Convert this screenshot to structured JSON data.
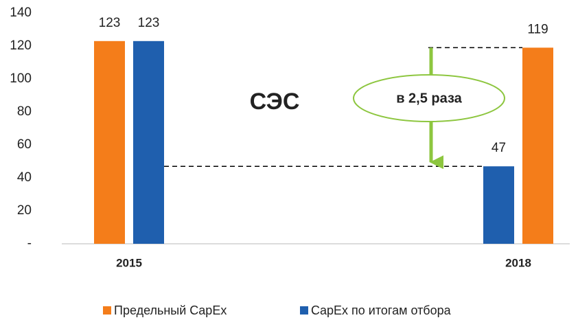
{
  "chart_data": {
    "type": "bar",
    "categories": [
      "2015",
      "2018"
    ],
    "series": [
      {
        "name": "Предельный CapEx",
        "color": "#f47d1a",
        "values": [
          123,
          119
        ]
      },
      {
        "name": "CapEx по итогам отбора",
        "color": "#1f5fae",
        "values": [
          123,
          47
        ]
      }
    ],
    "ylim": [
      0,
      140
    ],
    "yticks": [
      {
        "value": 0,
        "label": "-"
      },
      20,
      40,
      60,
      80,
      100,
      120,
      140
    ],
    "annotations": [
      "СЭС",
      "в 2,5 раза"
    ],
    "arrow_color": "#8dc63f",
    "legend": "bottom"
  }
}
